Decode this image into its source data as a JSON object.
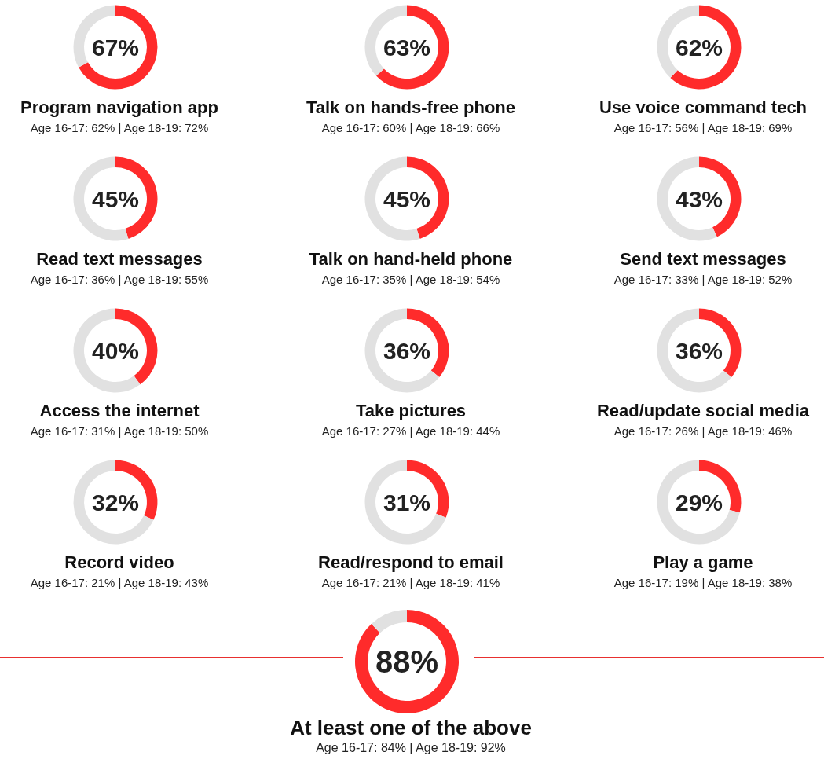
{
  "chart_data": [
    {
      "type": "donut",
      "title": "Program navigation app",
      "subtitle": "Age 16-17: 62% | Age 18-19: 72%",
      "categories": [
        null,
        null
      ],
      "values": [
        67,
        33
      ],
      "colors": [
        "#ff2b2b",
        "#e1e1e1"
      ],
      "annotations": [
        "67%"
      ]
    },
    {
      "type": "donut",
      "title": "Talk on hands-free phone",
      "subtitle": "Age 16-17: 60% | Age 18-19: 66%",
      "categories": [
        null,
        null
      ],
      "values": [
        63,
        37
      ],
      "colors": [
        "#ff2b2b",
        "#e1e1e1"
      ],
      "annotations": [
        "63%"
      ]
    },
    {
      "type": "donut",
      "title": "Use voice command tech",
      "subtitle": "Age 16-17: 56% | Age 18-19: 69%",
      "categories": [
        null,
        null
      ],
      "values": [
        62,
        38
      ],
      "colors": [
        "#ff2b2b",
        "#e1e1e1"
      ],
      "annotations": [
        "62%"
      ]
    },
    {
      "type": "donut",
      "title": "Read text messages",
      "subtitle": "Age 16-17: 36% | Age 18-19: 55%",
      "categories": [
        null,
        null
      ],
      "values": [
        45,
        55
      ],
      "colors": [
        "#ff2b2b",
        "#e1e1e1"
      ],
      "annotations": [
        "45%"
      ]
    },
    {
      "type": "donut",
      "title": "Talk on hand-held phone",
      "subtitle": "Age 16-17: 35% | Age 18-19: 54%",
      "categories": [
        null,
        null
      ],
      "values": [
        45,
        55
      ],
      "colors": [
        "#ff2b2b",
        "#e1e1e1"
      ],
      "annotations": [
        "45%"
      ]
    },
    {
      "type": "donut",
      "title": "Send text messages",
      "subtitle": "Age 16-17: 33% | Age 18-19: 52%",
      "categories": [
        null,
        null
      ],
      "values": [
        43,
        57
      ],
      "colors": [
        "#ff2b2b",
        "#e1e1e1"
      ],
      "annotations": [
        "43%"
      ]
    },
    {
      "type": "donut",
      "title": "Access the internet",
      "subtitle": "Age 16-17: 31% | Age 18-19: 50%",
      "categories": [
        null,
        null
      ],
      "values": [
        40,
        60
      ],
      "colors": [
        "#ff2b2b",
        "#e1e1e1"
      ],
      "annotations": [
        "40%"
      ]
    },
    {
      "type": "donut",
      "title": "Take pictures",
      "subtitle": "Age 16-17: 27% | Age 18-19: 44%",
      "categories": [
        null,
        null
      ],
      "values": [
        36,
        64
      ],
      "colors": [
        "#ff2b2b",
        "#e1e1e1"
      ],
      "annotations": [
        "36%"
      ]
    },
    {
      "type": "donut",
      "title": "Read/update social media",
      "subtitle": "Age 16-17: 26% | Age 18-19: 46%",
      "categories": [
        null,
        null
      ],
      "values": [
        36,
        64
      ],
      "colors": [
        "#ff2b2b",
        "#e1e1e1"
      ],
      "annotations": [
        "36%"
      ]
    },
    {
      "type": "donut",
      "title": "Record video",
      "subtitle": "Age 16-17: 21% | Age 18-19: 43%",
      "categories": [
        null,
        null
      ],
      "values": [
        32,
        68
      ],
      "colors": [
        "#ff2b2b",
        "#e1e1e1"
      ],
      "annotations": [
        "32%"
      ]
    },
    {
      "type": "donut",
      "title": "Read/respond to email",
      "subtitle": "Age 16-17: 21% | Age 18-19: 41%",
      "categories": [
        null,
        null
      ],
      "values": [
        31,
        69
      ],
      "colors": [
        "#ff2b2b",
        "#e1e1e1"
      ],
      "annotations": [
        "31%"
      ]
    },
    {
      "type": "donut",
      "title": "Play a game",
      "subtitle": "Age 16-17: 19% | Age 18-19: 38%",
      "categories": [
        null,
        null
      ],
      "values": [
        29,
        71
      ],
      "colors": [
        "#ff2b2b",
        "#e1e1e1"
      ],
      "annotations": [
        "29%"
      ]
    },
    {
      "type": "donut",
      "title": "At least one of the above",
      "subtitle": "Age 16-17: 84% | Age 18-19: 92%",
      "categories": [
        null,
        null
      ],
      "values": [
        88,
        12
      ],
      "colors": [
        "#ff2b2b",
        "#e1e1e1"
      ],
      "annotations": [
        "88%"
      ]
    }
  ]
}
